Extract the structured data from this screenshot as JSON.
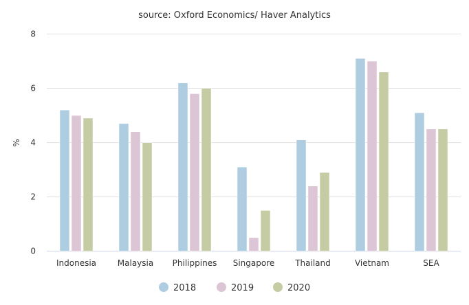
{
  "chart_data": {
    "type": "bar",
    "title": "source: Oxford Economics/ Haver Analytics",
    "xlabel": "",
    "ylabel": "%",
    "ylim": [
      0,
      8
    ],
    "yticks": [
      0,
      2,
      4,
      6,
      8
    ],
    "grid": true,
    "legend": "bottom",
    "categories": [
      "Indonesia",
      "Malaysia",
      "Philippines",
      "Singapore",
      "Thailand",
      "Vietnam",
      "SEA"
    ],
    "series": [
      {
        "name": "2018",
        "color": "#aecde0",
        "values": [
          5.2,
          4.7,
          6.2,
          3.1,
          4.1,
          7.1,
          5.1
        ]
      },
      {
        "name": "2019",
        "color": "#dcc5d4",
        "values": [
          5.0,
          4.4,
          5.8,
          0.5,
          2.4,
          7.0,
          4.5
        ]
      },
      {
        "name": "2020",
        "color": "#c5cca3",
        "values": [
          4.9,
          4.0,
          6.0,
          1.5,
          2.9,
          6.6,
          4.5
        ]
      }
    ]
  }
}
